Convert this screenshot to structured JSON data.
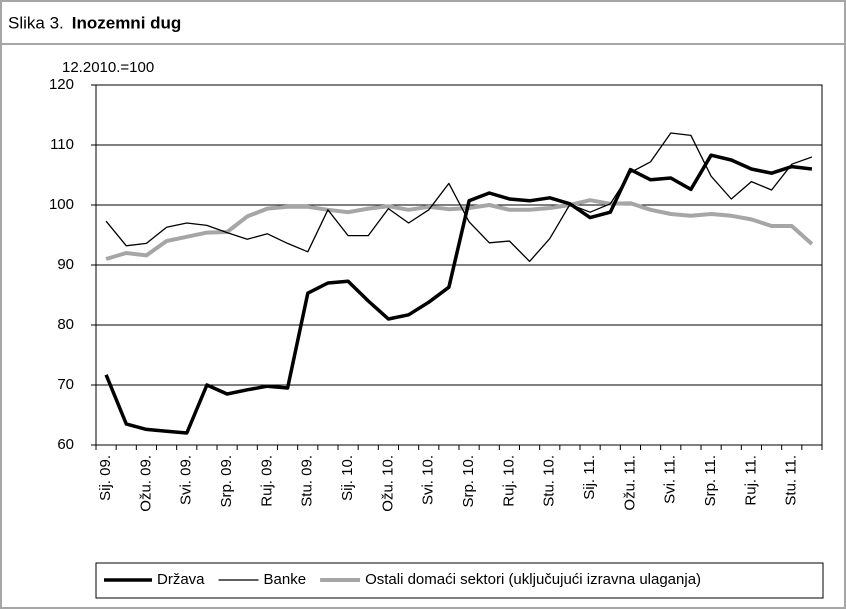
{
  "chart_data": {
    "type": "line",
    "figure_label": "Slika 3.",
    "title": "Inozemni dug",
    "subtitle": "12.2010.=100",
    "categories": [
      "Sij. 09.",
      null,
      "Ožu. 09.",
      null,
      "Svi. 09.",
      null,
      "Srp. 09.",
      null,
      "Ruj. 09.",
      null,
      "Stu. 09.",
      null,
      "Sij. 10.",
      null,
      "Ožu. 10.",
      null,
      "Svi. 10.",
      null,
      "Srp. 10.",
      null,
      "Ruj. 10.",
      null,
      "Stu. 10.",
      null,
      "Sij. 11.",
      null,
      "Ožu. 11.",
      null,
      "Svi. 11.",
      null,
      "Srp. 11.",
      null,
      "Ruj. 11.",
      null,
      "Stu. 11.",
      null
    ],
    "series": [
      {
        "name": "Država",
        "color": "#000000",
        "width": 3.5,
        "values": [
          71.7,
          63.5,
          62.6,
          62.3,
          62,
          70,
          68.5,
          69.2,
          69.8,
          69.5,
          85.3,
          87,
          87.3,
          84,
          81,
          81.7,
          83.8,
          86.3,
          100.7,
          102,
          101,
          100.7,
          101.2,
          100.2,
          97.9,
          98.8,
          105.9,
          104.2,
          104.5,
          102.6,
          108.3,
          107.5,
          106,
          105.3,
          106.4,
          106
        ]
      },
      {
        "name": "Banke",
        "color": "#000000",
        "width": 1.3,
        "values": [
          97.3,
          93.2,
          93.6,
          96.3,
          97,
          96.6,
          95.4,
          94.3,
          95.2,
          93.6,
          92.2,
          99.2,
          94.9,
          94.9,
          99.4,
          97,
          99.2,
          103.6,
          97.2,
          93.7,
          94,
          90.6,
          94.4,
          100.1,
          98.8,
          100.2,
          105.4,
          107.2,
          112,
          111.6,
          104.8,
          101,
          103.9,
          102.5,
          106.8,
          108
        ]
      },
      {
        "name": "Ostali domaći sektori (uključujući izravna ulaganja)",
        "color": "#a6a6a6",
        "width": 4,
        "values": [
          91,
          92,
          91.6,
          94,
          94.7,
          95.4,
          95.5,
          98.1,
          99.4,
          99.7,
          99.7,
          99.2,
          98.8,
          99.4,
          99.8,
          99.2,
          99.7,
          99.3,
          99.5,
          100,
          99.2,
          99.2,
          99.5,
          100,
          100.8,
          100.2,
          100.3,
          99.2,
          98.5,
          98.2,
          98.5,
          98.2,
          97.6,
          96.5,
          96.5,
          93.5
        ]
      }
    ],
    "ylim": [
      60,
      120
    ],
    "yticks": [
      60,
      70,
      80,
      90,
      100,
      110,
      120
    ],
    "grid": true
  }
}
